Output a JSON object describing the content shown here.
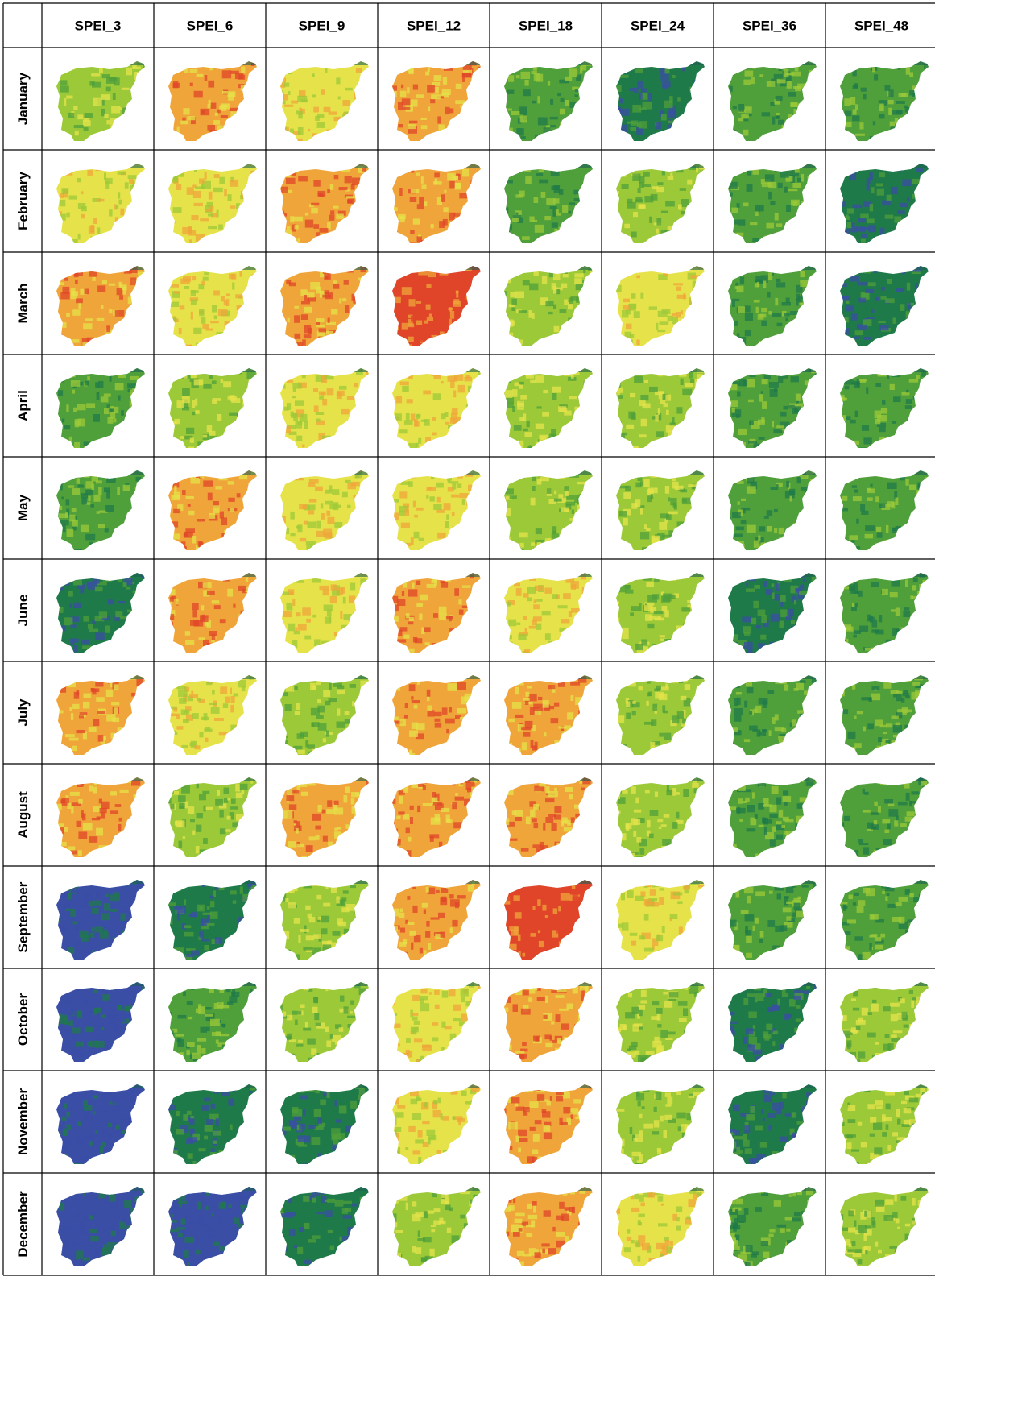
{
  "columns": [
    "SPEI_3",
    "SPEI_6",
    "SPEI_9",
    "SPEI_12",
    "SPEI_18",
    "SPEI_24",
    "SPEI_36",
    "SPEI_48"
  ],
  "months": [
    "January",
    "February",
    "March",
    "April",
    "May",
    "June",
    "July",
    "August",
    "September",
    "October",
    "November",
    "December"
  ],
  "palette": {
    "very_wet": "#3b4ea6",
    "wet": "#1f7a4a",
    "normal_wet": "#4f9f3a",
    "normal": "#9cc938",
    "normal_dry": "#e6e34a",
    "dry": "#efa53a",
    "very_dry": "#e0452a",
    "coast": "#1d5f55"
  },
  "map_tone": [
    [
      "normal",
      "dry",
      "normal_dry",
      "dry",
      "normal_wet",
      "wet",
      "normal_wet",
      "normal_wet"
    ],
    [
      "normal_dry",
      "normal_dry",
      "dry",
      "dry",
      "normal_wet",
      "normal",
      "normal_wet",
      "wet"
    ],
    [
      "dry",
      "normal_dry",
      "dry",
      "very_dry",
      "normal",
      "normal_dry",
      "normal_wet",
      "wet"
    ],
    [
      "normal_wet",
      "normal",
      "normal_dry",
      "normal_dry",
      "normal",
      "normal",
      "normal_wet",
      "normal_wet"
    ],
    [
      "normal_wet",
      "dry",
      "normal_dry",
      "normal_dry",
      "normal",
      "normal",
      "normal_wet",
      "normal_wet"
    ],
    [
      "wet",
      "dry",
      "normal_dry",
      "dry",
      "normal_dry",
      "normal",
      "wet",
      "normal_wet"
    ],
    [
      "dry",
      "normal_dry",
      "normal",
      "dry",
      "dry",
      "normal",
      "normal_wet",
      "normal_wet"
    ],
    [
      "dry",
      "normal",
      "dry",
      "dry",
      "dry",
      "normal",
      "normal_wet",
      "normal_wet"
    ],
    [
      "very_wet",
      "wet",
      "normal",
      "dry",
      "very_dry",
      "normal_dry",
      "normal_wet",
      "normal_wet"
    ],
    [
      "very_wet",
      "normal_wet",
      "normal",
      "normal_dry",
      "dry",
      "normal",
      "wet",
      "normal"
    ],
    [
      "very_wet",
      "wet",
      "wet",
      "normal_dry",
      "dry",
      "normal",
      "wet",
      "normal"
    ],
    [
      "very_wet",
      "very_wet",
      "wet",
      "normal",
      "dry",
      "normal_dry",
      "normal_wet",
      "normal"
    ]
  ]
}
